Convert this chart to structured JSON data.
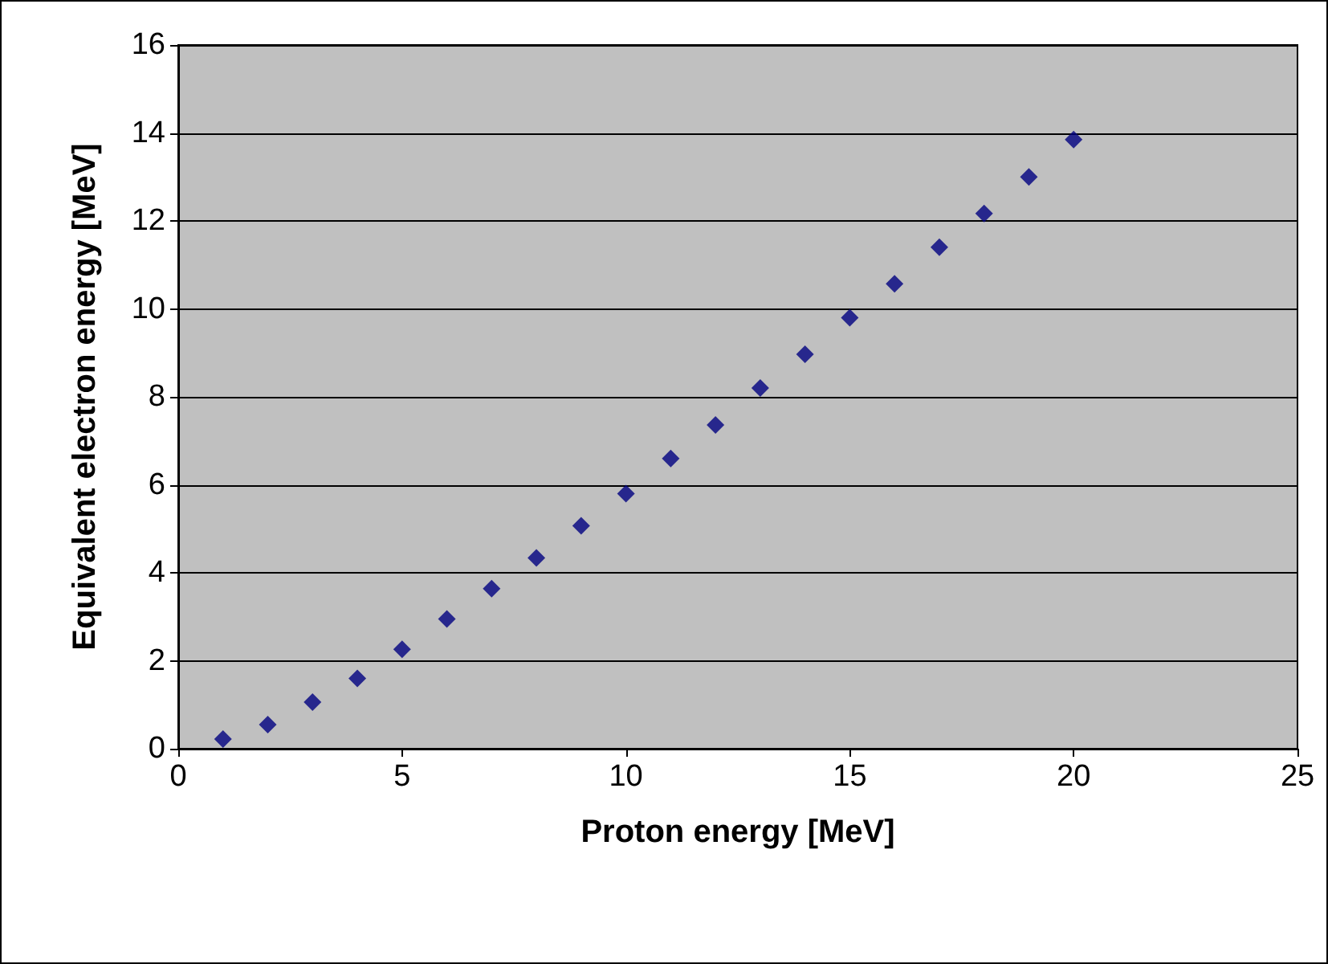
{
  "chart_data": {
    "type": "scatter",
    "xlabel": "Proton energy [MeV]",
    "ylabel": "Equivalent electron energy [MeV]",
    "x": [
      1,
      2,
      3,
      4,
      5,
      6,
      7,
      8,
      9,
      10,
      11,
      12,
      13,
      14,
      15,
      16,
      17,
      18,
      19,
      20
    ],
    "series": [
      {
        "color": "#000080",
        "values": [
          0.22,
          0.55,
          1.06,
          1.6,
          2.26,
          2.95,
          3.64,
          4.34,
          5.07,
          5.8,
          6.6,
          7.36,
          8.2,
          8.97,
          9.8,
          10.57,
          11.4,
          12.17,
          13.0,
          13.85
        ]
      }
    ],
    "xlim": [
      0,
      25
    ],
    "xticks": [
      0,
      5,
      10,
      15,
      20,
      25
    ],
    "ylim": [
      0,
      16
    ],
    "yticks": [
      0,
      2,
      4,
      6,
      8,
      10,
      12,
      14,
      16
    ],
    "grid": "y",
    "marker": "diamond"
  }
}
